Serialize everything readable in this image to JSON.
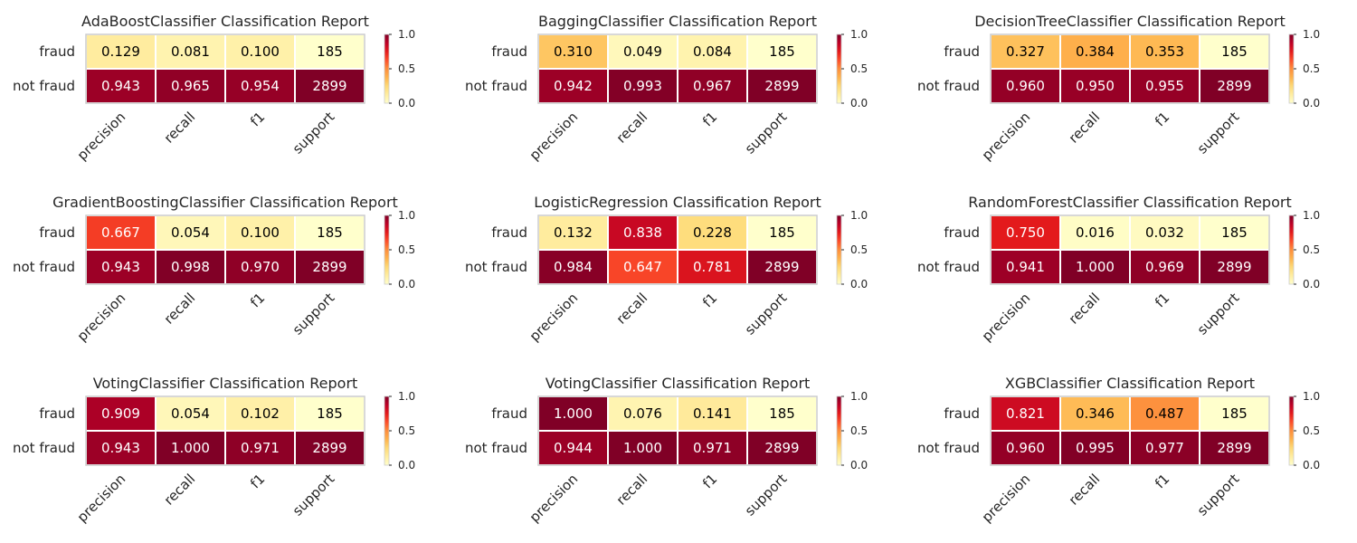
{
  "chart_data": [
    {
      "type": "heatmap",
      "title": "AdaBoostClassifier Classification Report",
      "rows": [
        "fraud",
        "not fraud"
      ],
      "columns": [
        "precision",
        "recall",
        "f1",
        "support"
      ],
      "values": [
        [
          0.129,
          0.081,
          0.1,
          185
        ],
        [
          0.943,
          0.965,
          0.954,
          2899
        ]
      ],
      "labels": [
        [
          "0.129",
          "0.081",
          "0.100",
          "185"
        ],
        [
          "0.943",
          "0.965",
          "0.954",
          "2899"
        ]
      ],
      "colorbar": {
        "range": [
          0.0,
          1.0
        ],
        "ticks": [
          "0.0",
          "0.5",
          "1.0"
        ]
      }
    },
    {
      "type": "heatmap",
      "title": "BaggingClassifier Classification Report",
      "rows": [
        "fraud",
        "not fraud"
      ],
      "columns": [
        "precision",
        "recall",
        "f1",
        "support"
      ],
      "values": [
        [
          0.31,
          0.049,
          0.084,
          185
        ],
        [
          0.942,
          0.993,
          0.967,
          2899
        ]
      ],
      "labels": [
        [
          "0.310",
          "0.049",
          "0.084",
          "185"
        ],
        [
          "0.942",
          "0.993",
          "0.967",
          "2899"
        ]
      ],
      "colorbar": {
        "range": [
          0.0,
          1.0
        ],
        "ticks": [
          "0.0",
          "0.5",
          "1.0"
        ]
      }
    },
    {
      "type": "heatmap",
      "title": "DecisionTreeClassifier Classification Report",
      "rows": [
        "fraud",
        "not fraud"
      ],
      "columns": [
        "precision",
        "recall",
        "f1",
        "support"
      ],
      "values": [
        [
          0.327,
          0.384,
          0.353,
          185
        ],
        [
          0.96,
          0.95,
          0.955,
          2899
        ]
      ],
      "labels": [
        [
          "0.327",
          "0.384",
          "0.353",
          "185"
        ],
        [
          "0.960",
          "0.950",
          "0.955",
          "2899"
        ]
      ],
      "colorbar": {
        "range": [
          0.0,
          1.0
        ],
        "ticks": [
          "0.0",
          "0.5",
          "1.0"
        ]
      }
    },
    {
      "type": "heatmap",
      "title": "GradientBoostingClassifier Classification Report",
      "rows": [
        "fraud",
        "not fraud"
      ],
      "columns": [
        "precision",
        "recall",
        "f1",
        "support"
      ],
      "values": [
        [
          0.667,
          0.054,
          0.1,
          185
        ],
        [
          0.943,
          0.998,
          0.97,
          2899
        ]
      ],
      "labels": [
        [
          "0.667",
          "0.054",
          "0.100",
          "185"
        ],
        [
          "0.943",
          "0.998",
          "0.970",
          "2899"
        ]
      ],
      "colorbar": {
        "range": [
          0.0,
          1.0
        ],
        "ticks": [
          "0.0",
          "0.5",
          "1.0"
        ]
      }
    },
    {
      "type": "heatmap",
      "title": "LogisticRegression Classification Report",
      "rows": [
        "fraud",
        "not fraud"
      ],
      "columns": [
        "precision",
        "recall",
        "f1",
        "support"
      ],
      "values": [
        [
          0.132,
          0.838,
          0.228,
          185
        ],
        [
          0.984,
          0.647,
          0.781,
          2899
        ]
      ],
      "labels": [
        [
          "0.132",
          "0.838",
          "0.228",
          "185"
        ],
        [
          "0.984",
          "0.647",
          "0.781",
          "2899"
        ]
      ],
      "colorbar": {
        "range": [
          0.0,
          1.0
        ],
        "ticks": [
          "0.0",
          "0.5",
          "1.0"
        ]
      }
    },
    {
      "type": "heatmap",
      "title": "RandomForestClassifier Classification Report",
      "rows": [
        "fraud",
        "not fraud"
      ],
      "columns": [
        "precision",
        "recall",
        "f1",
        "support"
      ],
      "values": [
        [
          0.75,
          0.016,
          0.032,
          185
        ],
        [
          0.941,
          1.0,
          0.969,
          2899
        ]
      ],
      "labels": [
        [
          "0.750",
          "0.016",
          "0.032",
          "185"
        ],
        [
          "0.941",
          "1.000",
          "0.969",
          "2899"
        ]
      ],
      "colorbar": {
        "range": [
          0.0,
          1.0
        ],
        "ticks": [
          "0.0",
          "0.5",
          "1.0"
        ]
      }
    },
    {
      "type": "heatmap",
      "title": "VotingClassifier Classification Report",
      "rows": [
        "fraud",
        "not fraud"
      ],
      "columns": [
        "precision",
        "recall",
        "f1",
        "support"
      ],
      "values": [
        [
          0.909,
          0.054,
          0.102,
          185
        ],
        [
          0.943,
          1.0,
          0.971,
          2899
        ]
      ],
      "labels": [
        [
          "0.909",
          "0.054",
          "0.102",
          "185"
        ],
        [
          "0.943",
          "1.000",
          "0.971",
          "2899"
        ]
      ],
      "colorbar": {
        "range": [
          0.0,
          1.0
        ],
        "ticks": [
          "0.0",
          "0.5",
          "1.0"
        ]
      }
    },
    {
      "type": "heatmap",
      "title": "VotingClassifier Classification Report",
      "rows": [
        "fraud",
        "not fraud"
      ],
      "columns": [
        "precision",
        "recall",
        "f1",
        "support"
      ],
      "values": [
        [
          1.0,
          0.076,
          0.141,
          185
        ],
        [
          0.944,
          1.0,
          0.971,
          2899
        ]
      ],
      "labels": [
        [
          "1.000",
          "0.076",
          "0.141",
          "185"
        ],
        [
          "0.944",
          "1.000",
          "0.971",
          "2899"
        ]
      ],
      "colorbar": {
        "range": [
          0.0,
          1.0
        ],
        "ticks": [
          "0.0",
          "0.5",
          "1.0"
        ]
      }
    },
    {
      "type": "heatmap",
      "title": "XGBClassifier Classification Report",
      "rows": [
        "fraud",
        "not fraud"
      ],
      "columns": [
        "precision",
        "recall",
        "f1",
        "support"
      ],
      "values": [
        [
          0.821,
          0.346,
          0.487,
          185
        ],
        [
          0.96,
          0.995,
          0.977,
          2899
        ]
      ],
      "labels": [
        [
          "0.821",
          "0.346",
          "0.487",
          "185"
        ],
        [
          "0.960",
          "0.995",
          "0.977",
          "2899"
        ]
      ],
      "colorbar": {
        "range": [
          0.0,
          1.0
        ],
        "ticks": [
          "0.0",
          "0.5",
          "1.0"
        ]
      }
    }
  ],
  "colormap": [
    "#ffffcc",
    "#ffeda0",
    "#fed976",
    "#feb24c",
    "#fd8d3c",
    "#fc4e2a",
    "#e31a1c",
    "#bd0026",
    "#800026"
  ],
  "colors": {
    "title_text": "#262626",
    "cell_border": "#ffffff",
    "frame": "#cccccc"
  }
}
